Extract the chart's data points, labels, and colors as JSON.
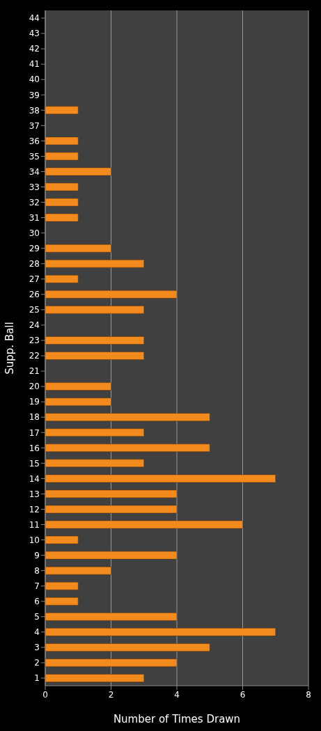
{
  "chart_data": {
    "type": "bar",
    "orientation": "horizontal",
    "xlabel": "Number of Times Drawn",
    "ylabel": "Supp. Ball",
    "categories": [
      "44",
      "43",
      "42",
      "41",
      "40",
      "39",
      "38",
      "37",
      "36",
      "35",
      "34",
      "33",
      "32",
      "31",
      "30",
      "29",
      "28",
      "27",
      "26",
      "25",
      "24",
      "23",
      "22",
      "21",
      "20",
      "19",
      "18",
      "17",
      "16",
      "15",
      "14",
      "13",
      "12",
      "11",
      "10",
      "9",
      "8",
      "7",
      "6",
      "5",
      "4",
      "3",
      "2",
      "1"
    ],
    "values": [
      0,
      0,
      0,
      0,
      0,
      0,
      1,
      0,
      1,
      1,
      2,
      1,
      1,
      1,
      0,
      2,
      3,
      1,
      4,
      3,
      0,
      3,
      3,
      0,
      2,
      2,
      5,
      3,
      5,
      3,
      7,
      4,
      4,
      6,
      1,
      4,
      2,
      1,
      1,
      4,
      7,
      5,
      4,
      3
    ],
    "color": "#f28a1e",
    "xlim": [
      0,
      8
    ],
    "xticks": [
      0,
      2,
      4,
      6,
      8
    ],
    "grid": "x"
  }
}
